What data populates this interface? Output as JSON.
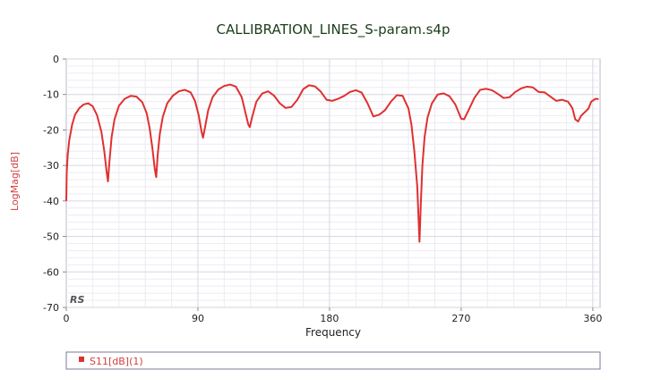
{
  "chart_data": {
    "type": "line",
    "title": "CALLIBRATION_LINES_S-param.s4p",
    "xlabel": "Frequency",
    "ylabel": "LogMag[dB]",
    "xlim": [
      0,
      365
    ],
    "ylim": [
      -70,
      0
    ],
    "xticks": [
      0,
      90,
      180,
      270,
      360
    ],
    "yticks": [
      0,
      -10,
      -20,
      -30,
      -40,
      -50,
      -60,
      -70
    ],
    "grid": true,
    "legend_position": "bottom",
    "watermark": "RS",
    "series": [
      {
        "name": "S11[dB](1)",
        "color": "#e03030",
        "x": [
          0,
          0.3,
          1,
          2,
          4,
          6,
          9,
          12,
          15,
          18,
          21,
          24,
          26,
          27.5,
          28.5,
          29.5,
          31,
          33,
          36,
          40,
          44,
          48,
          52,
          55,
          57,
          59,
          60.5,
          61.5,
          62.5,
          64,
          66,
          69,
          73,
          77,
          81,
          85,
          88,
          90.5,
          92.5,
          93.5,
          95,
          97,
          100,
          104,
          108,
          112,
          116,
          120,
          123,
          124.5,
          125.5,
          127,
          130,
          134,
          138,
          142,
          146,
          150,
          154,
          158,
          162,
          166,
          170,
          174,
          178,
          182,
          186,
          190,
          194,
          198,
          202,
          206,
          210,
          214,
          218,
          222,
          226,
          230,
          234,
          236,
          238,
          240,
          241.5,
          242.5,
          243.5,
          245,
          247,
          250,
          254,
          258,
          262,
          266,
          270,
          272,
          275,
          279,
          283,
          287,
          291,
          295,
          299,
          303,
          307,
          311,
          315,
          319,
          323,
          327,
          331,
          335,
          339,
          343,
          346,
          348,
          350,
          352,
          355,
          357,
          359,
          362,
          364
        ],
        "values": [
          -40,
          -32,
          -27,
          -23,
          -18.5,
          -15.7,
          -13.8,
          -12.8,
          -12.5,
          -13.3,
          -15.8,
          -20.5,
          -26,
          -31.5,
          -34.5,
          -29,
          -22,
          -17,
          -13.2,
          -11.2,
          -10.4,
          -10.6,
          -12.2,
          -15.3,
          -19.5,
          -25.5,
          -31,
          -33.3,
          -27,
          -21,
          -16.3,
          -12.5,
          -10.3,
          -9.1,
          -8.7,
          -9.4,
          -11.8,
          -15.8,
          -20.5,
          -22.2,
          -19,
          -14.5,
          -10.8,
          -8.6,
          -7.6,
          -7.2,
          -7.8,
          -10.8,
          -16,
          -18.5,
          -19.2,
          -16.5,
          -12,
          -9.7,
          -9.1,
          -10.3,
          -12.5,
          -13.8,
          -13.5,
          -11.5,
          -8.5,
          -7.4,
          -7.7,
          -9.2,
          -11.5,
          -11.8,
          -11.2,
          -10.4,
          -9.3,
          -8.8,
          -9.5,
          -12.5,
          -16.2,
          -15.7,
          -14.4,
          -12,
          -10.2,
          -10.4,
          -14,
          -18.5,
          -26,
          -36,
          -51.5,
          -40,
          -30,
          -22,
          -16.5,
          -12.5,
          -10,
          -9.7,
          -10.5,
          -12.8,
          -16.8,
          -17,
          -14.5,
          -11,
          -8.7,
          -8.4,
          -8.8,
          -9.8,
          -11,
          -10.8,
          -9.3,
          -8.3,
          -7.8,
          -8,
          -9.3,
          -9.4,
          -10.6,
          -11.8,
          -11.5,
          -12,
          -13.8,
          -17,
          -17.6,
          -16,
          -14.8,
          -14,
          -12,
          -11.2,
          -11.3
        ]
      }
    ]
  }
}
